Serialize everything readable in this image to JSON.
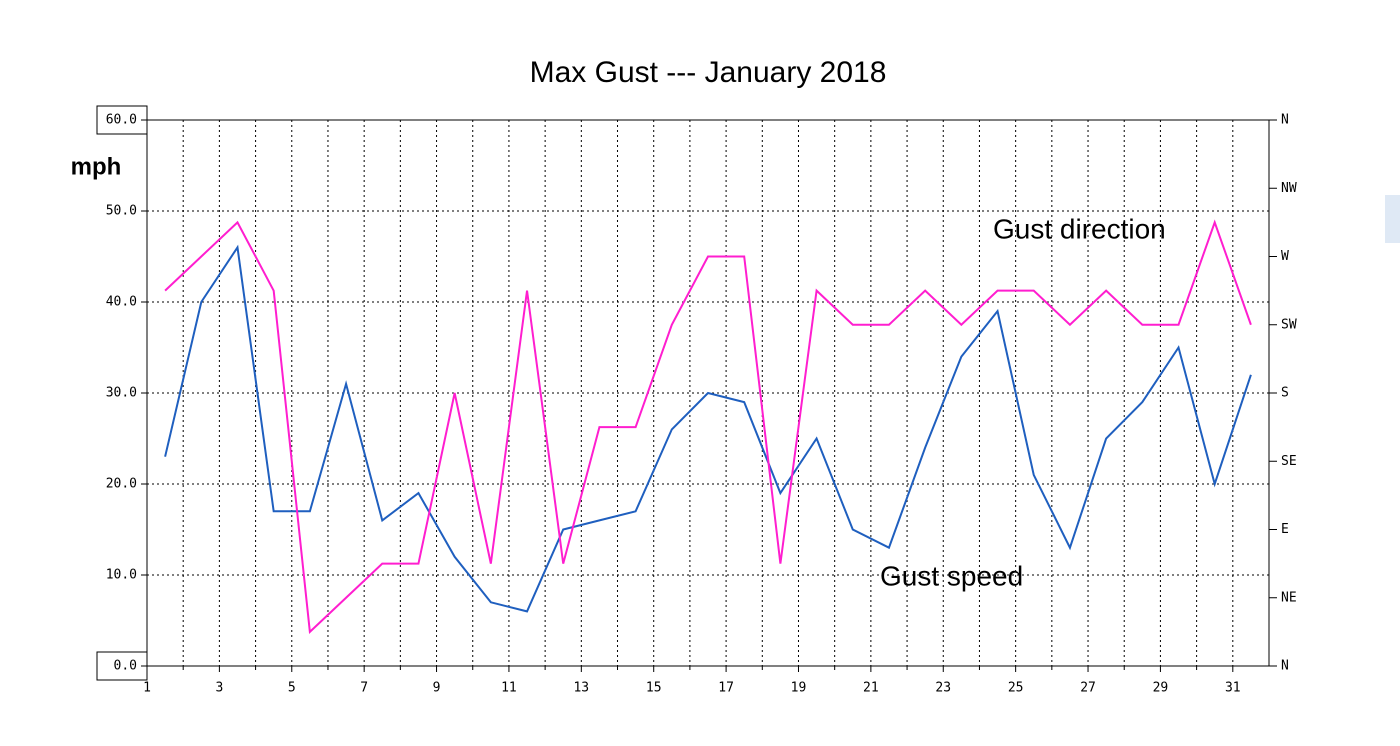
{
  "chart_data": {
    "type": "line",
    "title": "Max Gust --- January 2018",
    "y_label": "mph",
    "annotations": [
      "Gust direction",
      "Gust speed"
    ],
    "x": [
      1.5,
      2.5,
      3.5,
      4.5,
      5.5,
      6.5,
      7.5,
      8.5,
      9.5,
      10.5,
      11.5,
      12.5,
      13.5,
      14.5,
      15.5,
      16.5,
      17.5,
      18.5,
      19.5,
      20.5,
      21.5,
      22.5,
      23.5,
      24.5,
      25.5,
      26.5,
      27.5,
      28.5,
      29.5,
      30.5,
      31.5
    ],
    "series": [
      {
        "color": "#1f5fbf",
        "values": [
          23,
          40,
          46,
          17,
          17,
          31,
          16,
          19,
          12,
          7,
          6,
          15,
          16,
          17,
          26,
          30,
          29,
          19,
          25,
          15,
          13,
          24,
          34,
          39,
          21,
          13,
          25,
          29,
          35,
          20,
          32
        ]
      },
      {
        "color": "#ff1ecf",
        "axis": "y2",
        "values": [
          247.5,
          270,
          292.5,
          247.5,
          22.5,
          45,
          67.5,
          67.5,
          180,
          67.5,
          247.5,
          67.5,
          157.5,
          157.5,
          225,
          270,
          270,
          67.5,
          247.5,
          225,
          225,
          247.5,
          225,
          247.5,
          247.5,
          225,
          247.5,
          225,
          225,
          292.5,
          225
        ]
      }
    ],
    "xlim": [
      1,
      32
    ],
    "xticks": [
      1,
      3,
      5,
      7,
      9,
      11,
      13,
      15,
      17,
      19,
      21,
      23,
      25,
      27,
      29,
      31
    ],
    "xminorticks": [
      2,
      4,
      6,
      8,
      10,
      12,
      14,
      16,
      18,
      20,
      22,
      24,
      26,
      28,
      30
    ],
    "ylim": [
      0,
      60
    ],
    "yticks": [
      {
        "value": 0,
        "label": "0.0"
      },
      {
        "value": 10,
        "label": "10.0"
      },
      {
        "value": 20,
        "label": "20.0"
      },
      {
        "value": 30,
        "label": "30.0"
      },
      {
        "value": 40,
        "label": "40.0"
      },
      {
        "value": 50,
        "label": "50.0"
      },
      {
        "value": 60,
        "label": "60.0"
      }
    ],
    "y2lim": [
      0,
      360
    ],
    "y2ticks": [
      {
        "value": 0,
        "label": "N"
      },
      {
        "value": 45,
        "label": "NE"
      },
      {
        "value": 90,
        "label": "E"
      },
      {
        "value": 135,
        "label": "SE"
      },
      {
        "value": 180,
        "label": "S"
      },
      {
        "value": 225,
        "label": "SW"
      },
      {
        "value": 270,
        "label": "W"
      },
      {
        "value": 315,
        "label": "NW"
      },
      {
        "value": 360,
        "label": "N"
      }
    ],
    "grid": true
  }
}
